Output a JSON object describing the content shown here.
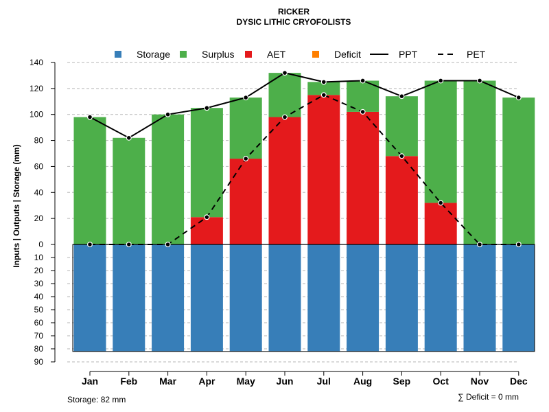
{
  "chart_data": {
    "type": "bar",
    "title": "RICKER",
    "subtitle": "DYSIC LITHIC CRYOFOLISTS",
    "ylabel": "Inputs | Outputs | Storage    (mm)",
    "categories": [
      "Jan",
      "Feb",
      "Mar",
      "Apr",
      "May",
      "Jun",
      "Jul",
      "Aug",
      "Sep",
      "Oct",
      "Nov",
      "Dec"
    ],
    "upper_ticks": [
      "0",
      "20",
      "40",
      "60",
      "80",
      "100",
      "120",
      "140"
    ],
    "lower_ticks": [
      "10",
      "20",
      "30",
      "40",
      "50",
      "60",
      "70",
      "80",
      "90"
    ],
    "ylim_upper": [
      0,
      140
    ],
    "ylim_lower": [
      0,
      90
    ],
    "gridlines": [
      140,
      120,
      100,
      80,
      60,
      40,
      20
    ],
    "lower_gridlines": [
      10,
      20,
      30,
      40,
      50,
      60,
      70,
      80,
      90
    ],
    "legend_position": "top",
    "legend": [
      {
        "label": "Storage",
        "color": "#377EB8",
        "kind": "square"
      },
      {
        "label": "Surplus",
        "color": "#4DAF4A",
        "kind": "square"
      },
      {
        "label": "AET",
        "color": "#E41A1C",
        "kind": "square"
      },
      {
        "label": "Deficit",
        "color": "#FF7F00",
        "kind": "square"
      },
      {
        "label": "PPT",
        "color": "#000000",
        "kind": "solid"
      },
      {
        "label": "PET",
        "color": "#000000",
        "kind": "dashed"
      }
    ],
    "series": [
      {
        "name": "Storage",
        "color": "#377EB8",
        "values": [
          82,
          82,
          82,
          82,
          82,
          82,
          82,
          82,
          82,
          82,
          82,
          82
        ]
      },
      {
        "name": "AET",
        "color": "#E41A1C",
        "values": [
          0,
          0,
          0,
          21,
          66,
          98,
          115,
          102,
          68,
          32,
          0,
          0
        ]
      },
      {
        "name": "Surplus",
        "color": "#4DAF4A",
        "values": [
          98,
          82,
          100,
          84,
          47,
          34,
          10,
          24,
          46,
          94,
          126,
          113
        ]
      },
      {
        "name": "Deficit",
        "color": "#FF7F00",
        "values": [
          0,
          0,
          0,
          0,
          0,
          0,
          0,
          0,
          0,
          0,
          0,
          0
        ]
      },
      {
        "name": "PPT",
        "color": "#000000",
        "values": [
          98,
          82,
          100,
          105,
          113,
          132,
          125,
          126,
          114,
          126,
          126,
          113
        ]
      },
      {
        "name": "PET",
        "color": "#000000",
        "values": [
          0,
          0,
          0,
          21,
          66,
          98,
          115,
          102,
          68,
          32,
          0,
          0
        ]
      }
    ],
    "footer_left": "Storage: 82 mm",
    "footer_right": "∑ Deficit = 0 mm"
  }
}
